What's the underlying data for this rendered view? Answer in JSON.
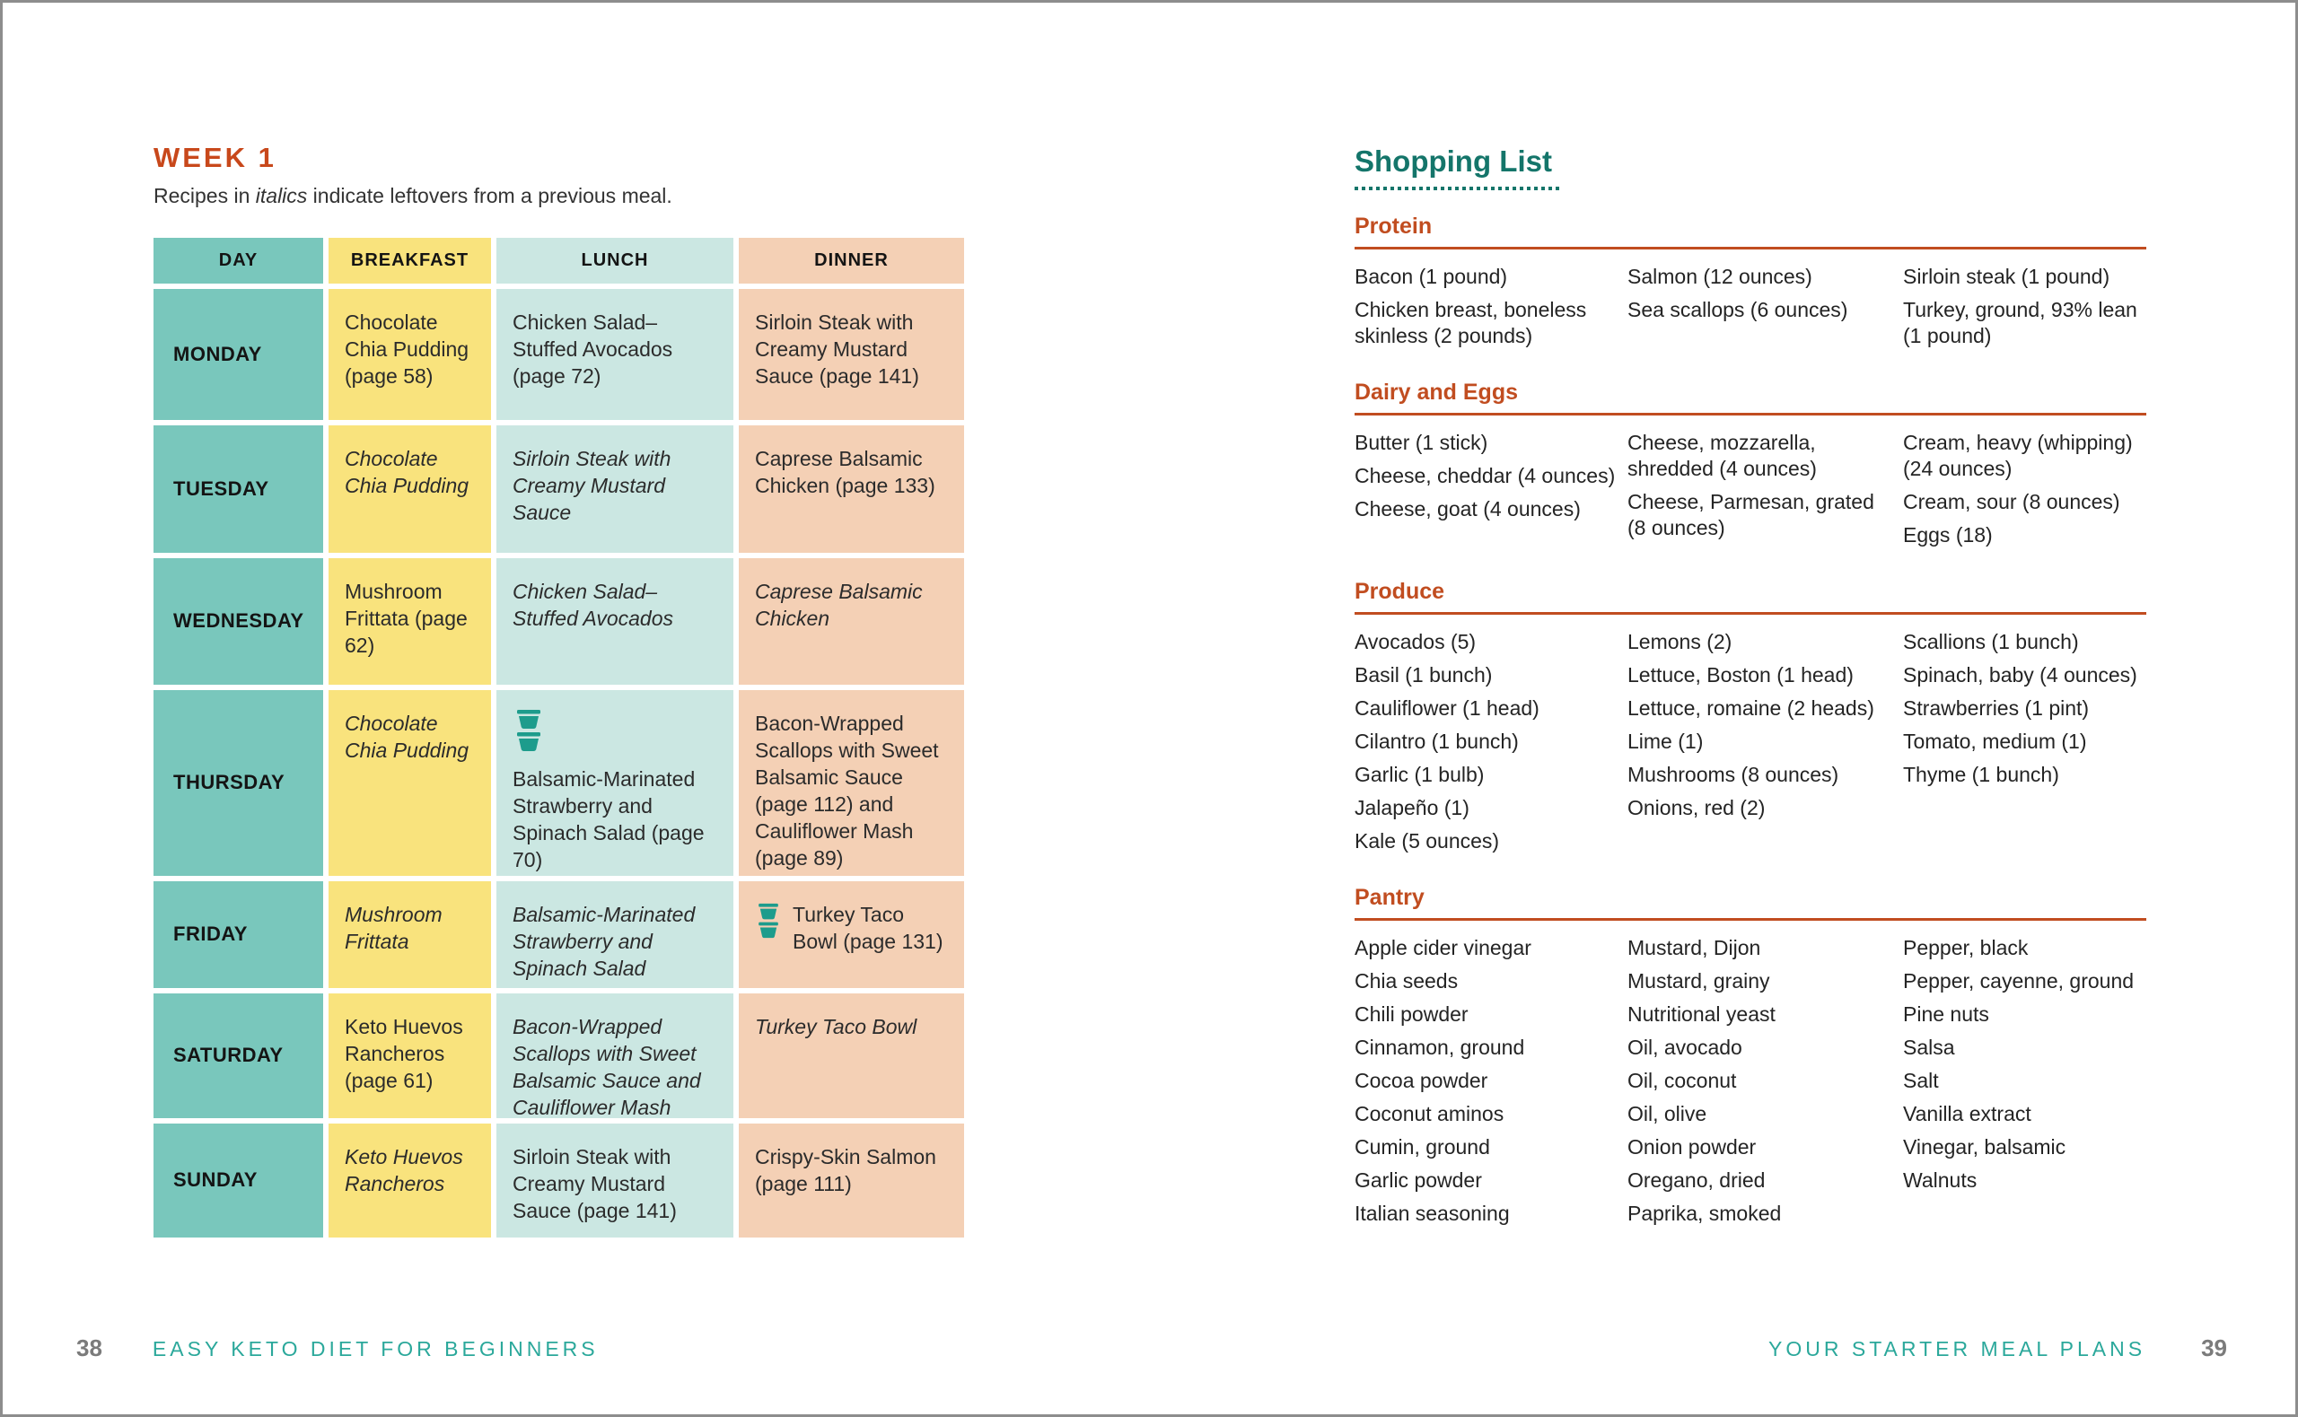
{
  "colors": {
    "week_title_orange": "#c8481b",
    "section_heading_orange": "#c14d20",
    "shopping_title_teal": "#14756a",
    "footer_teal": "#2ba89b",
    "page_number_gray": "#7b7b7b",
    "day_column_teal": "#79c7bc",
    "breakfast_yellow": "#f9e37d",
    "lunch_cyan": "#cbe7e2",
    "dinner_peach": "#f4d0b5",
    "container_icon_teal": "#1d9c8c"
  },
  "icons": {
    "meal_prep_container": "stacked meal-prep storage containers"
  },
  "left_page": {
    "week_title": "WEEK 1",
    "subtitle": {
      "pre": "Recipes in ",
      "italic_word": "italics",
      "post": " indicate leftovers from a previous meal."
    },
    "table": {
      "headers": [
        "DAY",
        "BREAKFAST",
        "LUNCH",
        "DINNER"
      ],
      "rows": [
        {
          "day": "MONDAY",
          "breakfast": "Chocolate Chia Pudding (page 58)",
          "lunch": "Chicken Salad–Stuffed Avocados (page 72)",
          "dinner": "Sirloin Steak with Creamy Mustard Sauce (page 141)"
        },
        {
          "day": "TUESDAY",
          "breakfast": "Chocolate Chia Pudding",
          "lunch": "Sirloin Steak with Creamy Mustard Sauce",
          "dinner": "Caprese Balsamic Chicken (page 133)"
        },
        {
          "day": "WEDNESDAY",
          "breakfast": "Mushroom Frittata (page 62)",
          "lunch": "Chicken Salad–Stuffed Avocados",
          "dinner": "Caprese Balsamic Chicken"
        },
        {
          "day": "THURSDAY",
          "breakfast": "Chocolate Chia Pudding",
          "lunch": "Balsamic-Marinated Strawberry and Spinach Salad (page 70)",
          "dinner": "Bacon-Wrapped Scallops with Sweet Balsamic Sauce (page 112) and Cauliflower Mash (page 89)"
        },
        {
          "day": "FRIDAY",
          "breakfast": "Mushroom Frittata",
          "lunch": "Balsamic-Marinated Strawberry and Spinach Salad",
          "dinner": "Turkey Taco Bowl (page 131)"
        },
        {
          "day": "SATURDAY",
          "breakfast": "Keto Huevos Rancheros (page 61)",
          "lunch": "Bacon-Wrapped Scallops with Sweet Balsamic Sauce and Cauliflower Mash",
          "dinner": "Turkey Taco Bowl"
        },
        {
          "day": "SUNDAY",
          "breakfast": "Keto Huevos Rancheros",
          "lunch": "Sirloin Steak with Creamy Mustard Sauce (page 141)",
          "dinner": "Crispy-Skin Salmon (page 111)"
        }
      ]
    }
  },
  "right_page": {
    "title": "Shopping List",
    "sections": [
      {
        "name": "Protein",
        "columns": [
          [
            "Bacon (1 pound)",
            "Chicken breast, boneless skinless (2 pounds)"
          ],
          [
            "Salmon (12 ounces)",
            "Sea scallops (6 ounces)"
          ],
          [
            "Sirloin steak (1 pound)",
            "Turkey, ground, 93% lean (1 pound)"
          ]
        ]
      },
      {
        "name": "Dairy and Eggs",
        "columns": [
          [
            "Butter (1 stick)",
            "Cheese, cheddar (4 ounces)",
            "Cheese, goat (4 ounces)"
          ],
          [
            "Cheese, mozzarella, shredded (4 ounces)",
            "Cheese, Parmesan, grated (8 ounces)"
          ],
          [
            "Cream, heavy (whipping) (24 ounces)",
            "Cream, sour (8 ounces)",
            "Eggs (18)"
          ]
        ]
      },
      {
        "name": "Produce",
        "columns": [
          [
            "Avocados (5)",
            "Basil (1 bunch)",
            "Cauliflower (1 head)",
            "Cilantro (1 bunch)",
            "Garlic (1 bulb)",
            "Jalapeño (1)",
            "Kale (5 ounces)"
          ],
          [
            "Lemons (2)",
            "Lettuce, Boston (1 head)",
            "Lettuce, romaine (2 heads)",
            "Lime (1)",
            "Mushrooms (8 ounces)",
            "Onions, red (2)"
          ],
          [
            "Scallions (1 bunch)",
            "Spinach, baby (4 ounces)",
            "Strawberries (1 pint)",
            "Tomato, medium (1)",
            "Thyme (1 bunch)"
          ]
        ]
      },
      {
        "name": "Pantry",
        "columns": [
          [
            "Apple cider vinegar",
            "Chia seeds",
            "Chili powder",
            "Cinnamon, ground",
            "Cocoa powder",
            "Coconut aminos",
            "Cumin, ground",
            "Garlic powder",
            "Italian seasoning"
          ],
          [
            "Mustard, Dijon",
            "Mustard, grainy",
            "Nutritional yeast",
            "Oil, avocado",
            "Oil, coconut",
            "Oil, olive",
            "Onion powder",
            "Oregano, dried",
            "Paprika, smoked"
          ],
          [
            "Pepper, black",
            "Pepper, cayenne, ground",
            "Pine nuts",
            "Salsa",
            "Salt",
            "Vanilla extract",
            "Vinegar, balsamic",
            "Walnuts"
          ]
        ]
      }
    ]
  },
  "footer": {
    "left_page_number": "38",
    "left_running_head": "EASY KETO DIET FOR BEGINNERS",
    "right_running_head": "YOUR STARTER MEAL PLANS",
    "right_page_number": "39"
  }
}
